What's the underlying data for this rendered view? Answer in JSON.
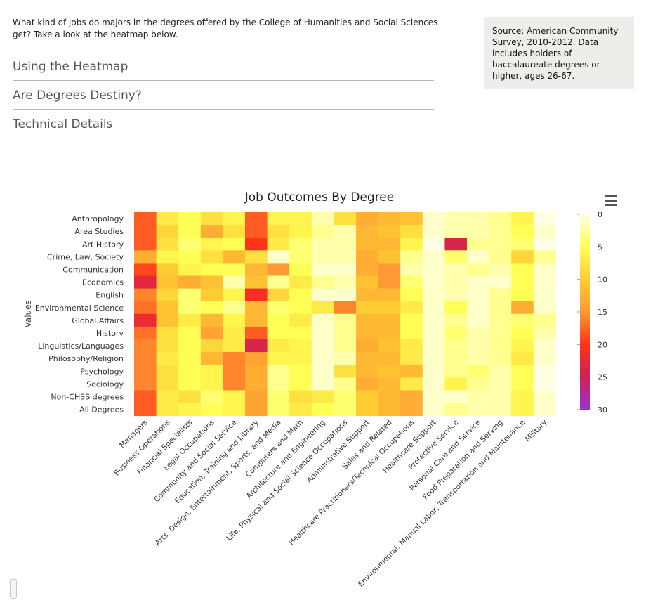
{
  "intro": {
    "text": "What kind of jobs do majors in the degrees offered by the College of Humanities and Social Sciences get? Take a look at the heatmap below."
  },
  "accordion": [
    {
      "label": "Using the Heatmap"
    },
    {
      "label": "Are Degrees Destiny?"
    },
    {
      "label": "Technical Details"
    }
  ],
  "source": {
    "text": "Source: American Community Survey, 2010-2012.  Data includes holders of baccalaureate degrees or higher, ages 26-67."
  },
  "colors": {
    "scale": [
      "#ffffe6",
      "#ffff55",
      "#ffcc33",
      "#ff9933",
      "#ff3318",
      "#d02058",
      "#9b30d8"
    ]
  },
  "chart_data": {
    "type": "heatmap",
    "title": "Job Outcomes By Degree",
    "ylabel": "Values",
    "xlabel": "",
    "color_range": [
      0,
      30
    ],
    "colorbar_ticks": [
      "0",
      "5",
      "10",
      "15",
      "20",
      "25",
      "30"
    ],
    "rows": [
      "Anthropology",
      "Area Studies",
      "Art History",
      "Crime, Law, Society",
      "Communication",
      "Economics",
      "English",
      "Environmental Science",
      "Global Affairs",
      "History",
      "Linguistics/Languages",
      "Philosophy/Religion",
      "Psychology",
      "Sociology",
      "Non-CHSS degrees",
      "All Degrees"
    ],
    "columns": [
      "Managers",
      "Business Operations",
      "Financial Specialists",
      "Legal Occupations",
      "Community and Social Service",
      "Education, Training and Library",
      "Arts, Design, Entertainment, Sports, and Media",
      "Computers and Math",
      "Architecture and Engineering",
      "Life, Physical and Social Science Occupations",
      "Administrative Support",
      "Sales and Related",
      "Healthcare Practitioners/Technical Occupations",
      "Healthcare Support",
      "Protective Service",
      "Personal Care and Service",
      "Food Preparation and Serving",
      "Environmental, Manual Labor, Transportation and Maintenance",
      "Military"
    ],
    "values": [
      [
        18,
        7,
        5,
        8,
        6,
        18,
        6,
        6,
        2,
        8,
        13,
        12,
        11,
        1,
        2,
        2,
        3,
        6,
        0
      ],
      [
        18,
        9,
        5,
        13,
        8,
        18,
        8,
        6,
        3,
        2,
        12,
        11,
        8,
        1,
        2,
        2,
        3,
        5,
        1
      ],
      [
        18,
        8,
        4,
        6,
        5,
        20,
        7,
        4,
        2,
        2,
        12,
        12,
        6,
        0,
        24,
        3,
        3,
        4,
        0
      ],
      [
        13,
        6,
        5,
        8,
        12,
        8,
        1,
        4,
        2,
        2,
        13,
        11,
        3,
        1,
        4,
        1,
        3,
        9,
        3
      ],
      [
        19,
        10,
        6,
        5,
        5,
        12,
        15,
        5,
        1,
        1,
        13,
        15,
        2,
        1,
        2,
        3,
        2,
        5,
        1
      ],
      [
        23,
        11,
        13,
        11,
        2,
        11,
        3,
        7,
        3,
        2,
        11,
        15,
        4,
        1,
        2,
        1,
        1,
        5,
        1
      ],
      [
        16,
        9,
        4,
        10,
        6,
        21,
        9,
        5,
        1,
        1,
        12,
        12,
        5,
        1,
        2,
        1,
        3,
        5,
        1
      ],
      [
        17,
        11,
        4,
        5,
        3,
        12,
        4,
        5,
        7,
        16,
        10,
        10,
        7,
        1,
        5,
        1,
        3,
        13,
        1
      ],
      [
        22,
        11,
        7,
        12,
        6,
        12,
        5,
        7,
        1,
        3,
        12,
        12,
        5,
        1,
        3,
        1,
        3,
        4,
        3
      ],
      [
        17,
        8,
        5,
        14,
        7,
        18,
        5,
        5,
        1,
        3,
        12,
        12,
        5,
        1,
        4,
        2,
        3,
        5,
        2
      ],
      [
        16,
        8,
        5,
        9,
        7,
        24,
        7,
        6,
        1,
        3,
        13,
        11,
        7,
        1,
        3,
        2,
        3,
        6,
        1
      ],
      [
        16,
        7,
        5,
        12,
        16,
        14,
        6,
        6,
        1,
        2,
        12,
        12,
        7,
        1,
        3,
        2,
        3,
        7,
        1
      ],
      [
        16,
        8,
        5,
        6,
        16,
        13,
        3,
        5,
        1,
        8,
        12,
        11,
        12,
        1,
        3,
        4,
        2,
        5,
        0
      ],
      [
        16,
        8,
        5,
        6,
        16,
        13,
        3,
        5,
        1,
        3,
        13,
        12,
        7,
        1,
        6,
        3,
        2,
        5,
        0
      ],
      [
        18,
        7,
        8,
        4,
        6,
        14,
        4,
        8,
        7,
        4,
        10,
        12,
        13,
        1,
        1,
        2,
        2,
        6,
        1
      ],
      [
        18,
        7,
        6,
        5,
        6,
        14,
        4,
        7,
        5,
        4,
        10,
        12,
        13,
        1,
        3,
        2,
        2,
        6,
        1
      ]
    ]
  }
}
